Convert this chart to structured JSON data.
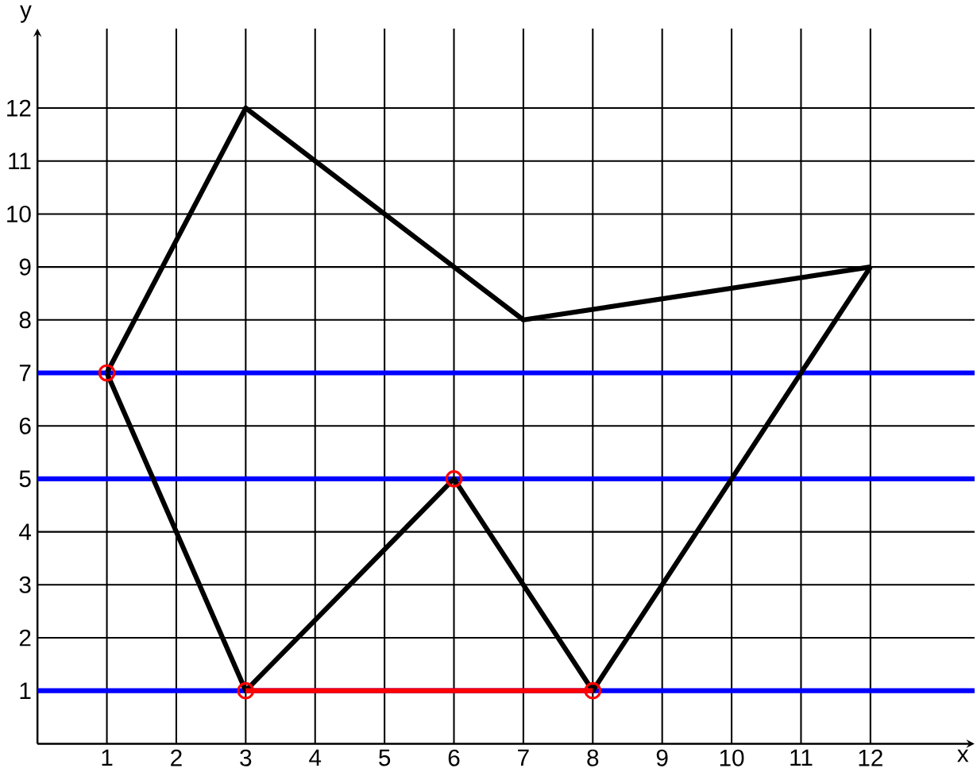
{
  "chart_data": {
    "type": "line",
    "xlabel": "x",
    "ylabel": "y",
    "xlim": [
      0,
      13.5
    ],
    "ylim": [
      0,
      13.5
    ],
    "xticks": [
      1,
      2,
      3,
      4,
      5,
      6,
      7,
      8,
      9,
      10,
      11,
      12
    ],
    "yticks": [
      1,
      2,
      3,
      4,
      5,
      6,
      7,
      8,
      9,
      10,
      11,
      12
    ],
    "grid": true,
    "series": [
      {
        "color": "#0000ff",
        "x": [
          0,
          13.5
        ],
        "values": [
          1,
          1
        ]
      },
      {
        "color": "#0000ff",
        "x": [
          0,
          13.5
        ],
        "values": [
          5,
          5
        ]
      },
      {
        "color": "#0000ff",
        "x": [
          0,
          13.5
        ],
        "values": [
          7,
          7
        ]
      },
      {
        "color": "#000000",
        "x": [
          1,
          3,
          7,
          12
        ],
        "values": [
          7,
          12,
          8,
          9
        ]
      },
      {
        "color": "#000000",
        "x": [
          1,
          3,
          6,
          8,
          12
        ],
        "values": [
          7,
          1,
          5,
          1,
          9
        ]
      },
      {
        "type": "line",
        "color": "#ff0000",
        "x": [
          3,
          8
        ],
        "values": [
          1,
          1
        ]
      },
      {
        "type": "scatter",
        "color": "#ff0000",
        "marker": "circle",
        "x": [
          1,
          3,
          6,
          8
        ],
        "values": [
          7,
          1,
          5,
          1
        ]
      }
    ]
  }
}
